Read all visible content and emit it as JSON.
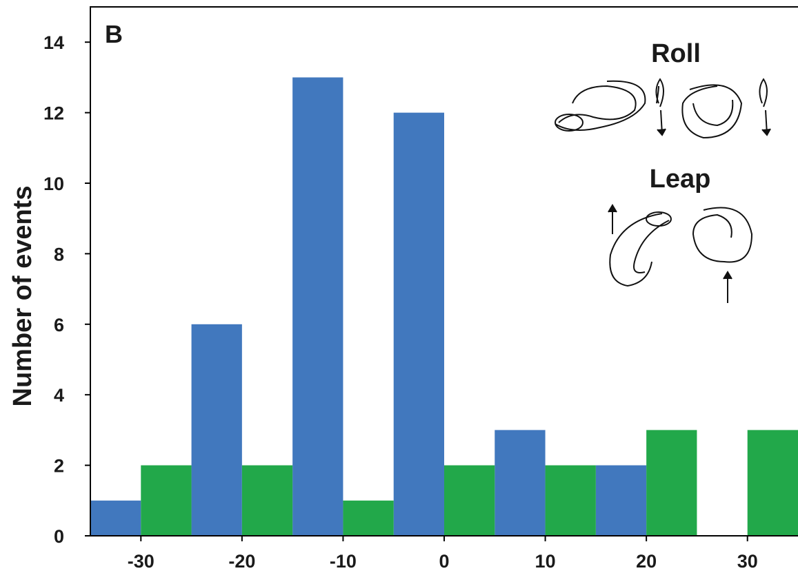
{
  "chart_data": {
    "type": "grouped-bar",
    "panel_label": "B",
    "y_label": "Number of events",
    "x": [
      -30,
      -20,
      -10,
      0,
      10,
      20,
      30
    ],
    "series": [
      {
        "name": "Roll",
        "color": "#4178be",
        "values": [
          1,
          6,
          13,
          12,
          3,
          2,
          0
        ]
      },
      {
        "name": "Leap",
        "color": "#22a84a",
        "values": [
          2,
          2,
          1,
          2,
          2,
          3,
          3
        ]
      }
    ],
    "xlim": [
      -35,
      35
    ],
    "xticks": [
      -30,
      -20,
      -10,
      0,
      10,
      20,
      30
    ],
    "ylim": [
      0,
      15
    ],
    "yticks": [
      0,
      2,
      4,
      6,
      8,
      10,
      12,
      14
    ]
  }
}
